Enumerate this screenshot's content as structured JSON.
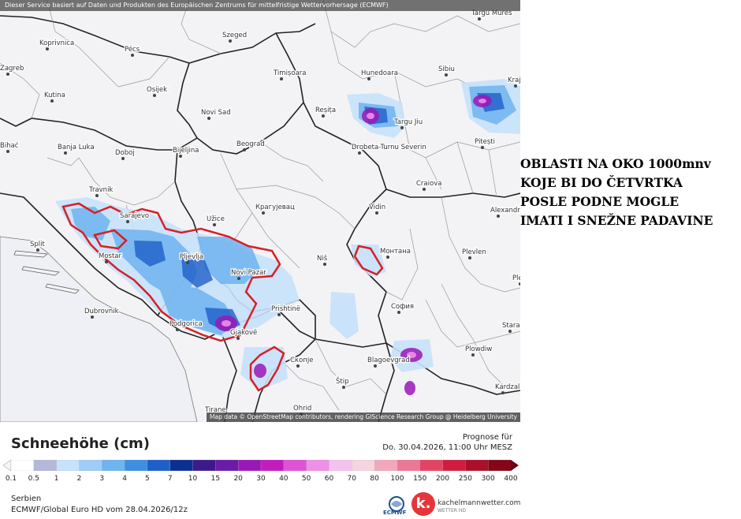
{
  "disclaimer": "Dieser Service basiert auf Daten und Produkten des Europäischen Zentrums für mittelfristige Wettervorhersage (ECMWF)",
  "attribution": "Map data © OpenStreetMap contributors, rendering GIScience Research Group @ Heidelberg University",
  "note_lines": [
    "OBLASTI NA OKO 1000mnv",
    "KOJE BI DO ČETVRTKA",
    "POSLE PODNE MOGLE",
    "IMATI I SNEŽNE PADAVINE"
  ],
  "legend": {
    "title": "Schneehöhe (cm)",
    "ticks": [
      "0.1",
      "0.5",
      "1",
      "2",
      "3",
      "4",
      "5",
      "7",
      "10",
      "15",
      "20",
      "30",
      "40",
      "50",
      "60",
      "70",
      "80",
      "100",
      "150",
      "200",
      "250",
      "300",
      "400"
    ],
    "colors": [
      "#ffffff",
      "#b5b9d9",
      "#c7e2fb",
      "#9fcdf7",
      "#6fb3f0",
      "#3d8fe3",
      "#1f5fc9",
      "#0c2f92",
      "#3d1a8c",
      "#6a1ba8",
      "#9a18b8",
      "#c21cbf",
      "#e052d7",
      "#ef8fe6",
      "#f4c2ef",
      "#f5d5e0",
      "#f2a8bc",
      "#ec7898",
      "#e34466",
      "#d11c3f",
      "#ac0f2a",
      "#850618"
    ]
  },
  "forecast": {
    "label": "Prognose für",
    "date": "Do. 30.04.2026, 11:00 Uhr MESZ"
  },
  "footer": {
    "region": "Serbien",
    "model": "ECMWF/Global Euro HD vom  28.04.2026/12z"
  },
  "logos": {
    "ecmwf": "ECMWF",
    "km": "k.",
    "km_name": "kachelmannwetter.com",
    "km_sub": "WETTER HD"
  },
  "cities": [
    {
      "name": "Targu Mures"
    },
    {
      "name": "Koprivnica"
    },
    {
      "name": "Szeged"
    },
    {
      "name": "Pécs"
    },
    {
      "name": "Zagreb"
    },
    {
      "name": "Timișoara"
    },
    {
      "name": "Hunedoara"
    },
    {
      "name": "Sibiu"
    },
    {
      "name": "Kutina"
    },
    {
      "name": "Osijek"
    },
    {
      "name": "Novi Sad"
    },
    {
      "name": "Reșița"
    },
    {
      "name": "Targu Jiu"
    },
    {
      "name": "Bihać"
    },
    {
      "name": "Banja Luka"
    },
    {
      "name": "Doboj"
    },
    {
      "name": "Bijeljina"
    },
    {
      "name": "Beograd"
    },
    {
      "name": "Drobeta-Turnu Severin"
    },
    {
      "name": "Pitești"
    },
    {
      "name": "Travnik"
    },
    {
      "name": "Craiova"
    },
    {
      "name": "Sarajevo"
    },
    {
      "name": "Užice"
    },
    {
      "name": "Крагујевац"
    },
    {
      "name": "Vidin"
    },
    {
      "name": "Alexandria"
    },
    {
      "name": "Split"
    },
    {
      "name": "Mostar"
    },
    {
      "name": "Pljevlja"
    },
    {
      "name": "Niš"
    },
    {
      "name": "Монтана"
    },
    {
      "name": "Plevlen"
    },
    {
      "name": "Novi Pazar"
    },
    {
      "name": "Dubrovnik"
    },
    {
      "name": "Prishtinë"
    },
    {
      "name": "София"
    },
    {
      "name": "Podgorica"
    },
    {
      "name": "Gjakovë"
    },
    {
      "name": "Plowdiw"
    },
    {
      "name": "Скопје"
    },
    {
      "name": "Blagoevgrad"
    },
    {
      "name": "Stara"
    },
    {
      "name": "Kardzali"
    },
    {
      "name": "Štip"
    },
    {
      "name": "Tirane"
    },
    {
      "name": "Ohrid"
    },
    {
      "name": "Kraj"
    },
    {
      "name": "Ples"
    }
  ]
}
